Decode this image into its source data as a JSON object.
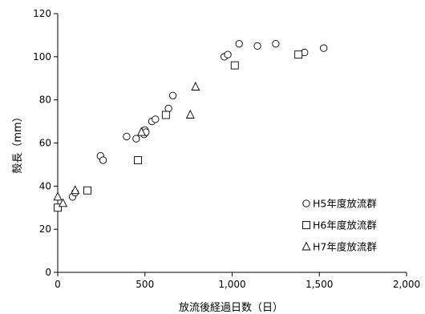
{
  "chart_data": {
    "type": "scatter",
    "xlabel": "放流後経過日数（日）",
    "ylabel": "殻長（mm）",
    "xlim": [
      0,
      2000
    ],
    "ylim": [
      0,
      120
    ],
    "x_ticks": [
      0,
      500,
      1000,
      1500,
      2000
    ],
    "x_tick_labels": [
      "0",
      "500",
      "1,000",
      "1,500",
      "2,000"
    ],
    "y_ticks": [
      0,
      20,
      40,
      60,
      80,
      100,
      120
    ],
    "y_tick_labels": [
      "0",
      "20",
      "40",
      "60",
      "80",
      "100",
      "120"
    ],
    "grid": false,
    "legend_position": "bottom-right",
    "series": [
      {
        "name": "H5年度放流群",
        "marker": "circle",
        "points": [
          [
            85,
            35
          ],
          [
            100,
            37
          ],
          [
            245,
            54
          ],
          [
            260,
            52
          ],
          [
            395,
            63
          ],
          [
            450,
            62
          ],
          [
            495,
            64
          ],
          [
            500,
            66
          ],
          [
            505,
            65
          ],
          [
            540,
            70
          ],
          [
            560,
            71
          ],
          [
            635,
            76
          ],
          [
            660,
            82
          ],
          [
            955,
            100
          ],
          [
            975,
            101
          ],
          [
            1040,
            106
          ],
          [
            1145,
            105
          ],
          [
            1250,
            106
          ],
          [
            1415,
            102
          ],
          [
            1525,
            104
          ]
        ]
      },
      {
        "name": "H6年度放流群",
        "marker": "square",
        "points": [
          [
            0,
            30
          ],
          [
            170,
            38
          ],
          [
            460,
            52
          ],
          [
            620,
            73
          ],
          [
            1015,
            96
          ],
          [
            1380,
            101
          ]
        ]
      },
      {
        "name": "H7年度放流群",
        "marker": "triangle",
        "points": [
          [
            0,
            35
          ],
          [
            30,
            32
          ],
          [
            100,
            38
          ],
          [
            480,
            65
          ],
          [
            760,
            73
          ],
          [
            790,
            86
          ]
        ]
      }
    ]
  }
}
